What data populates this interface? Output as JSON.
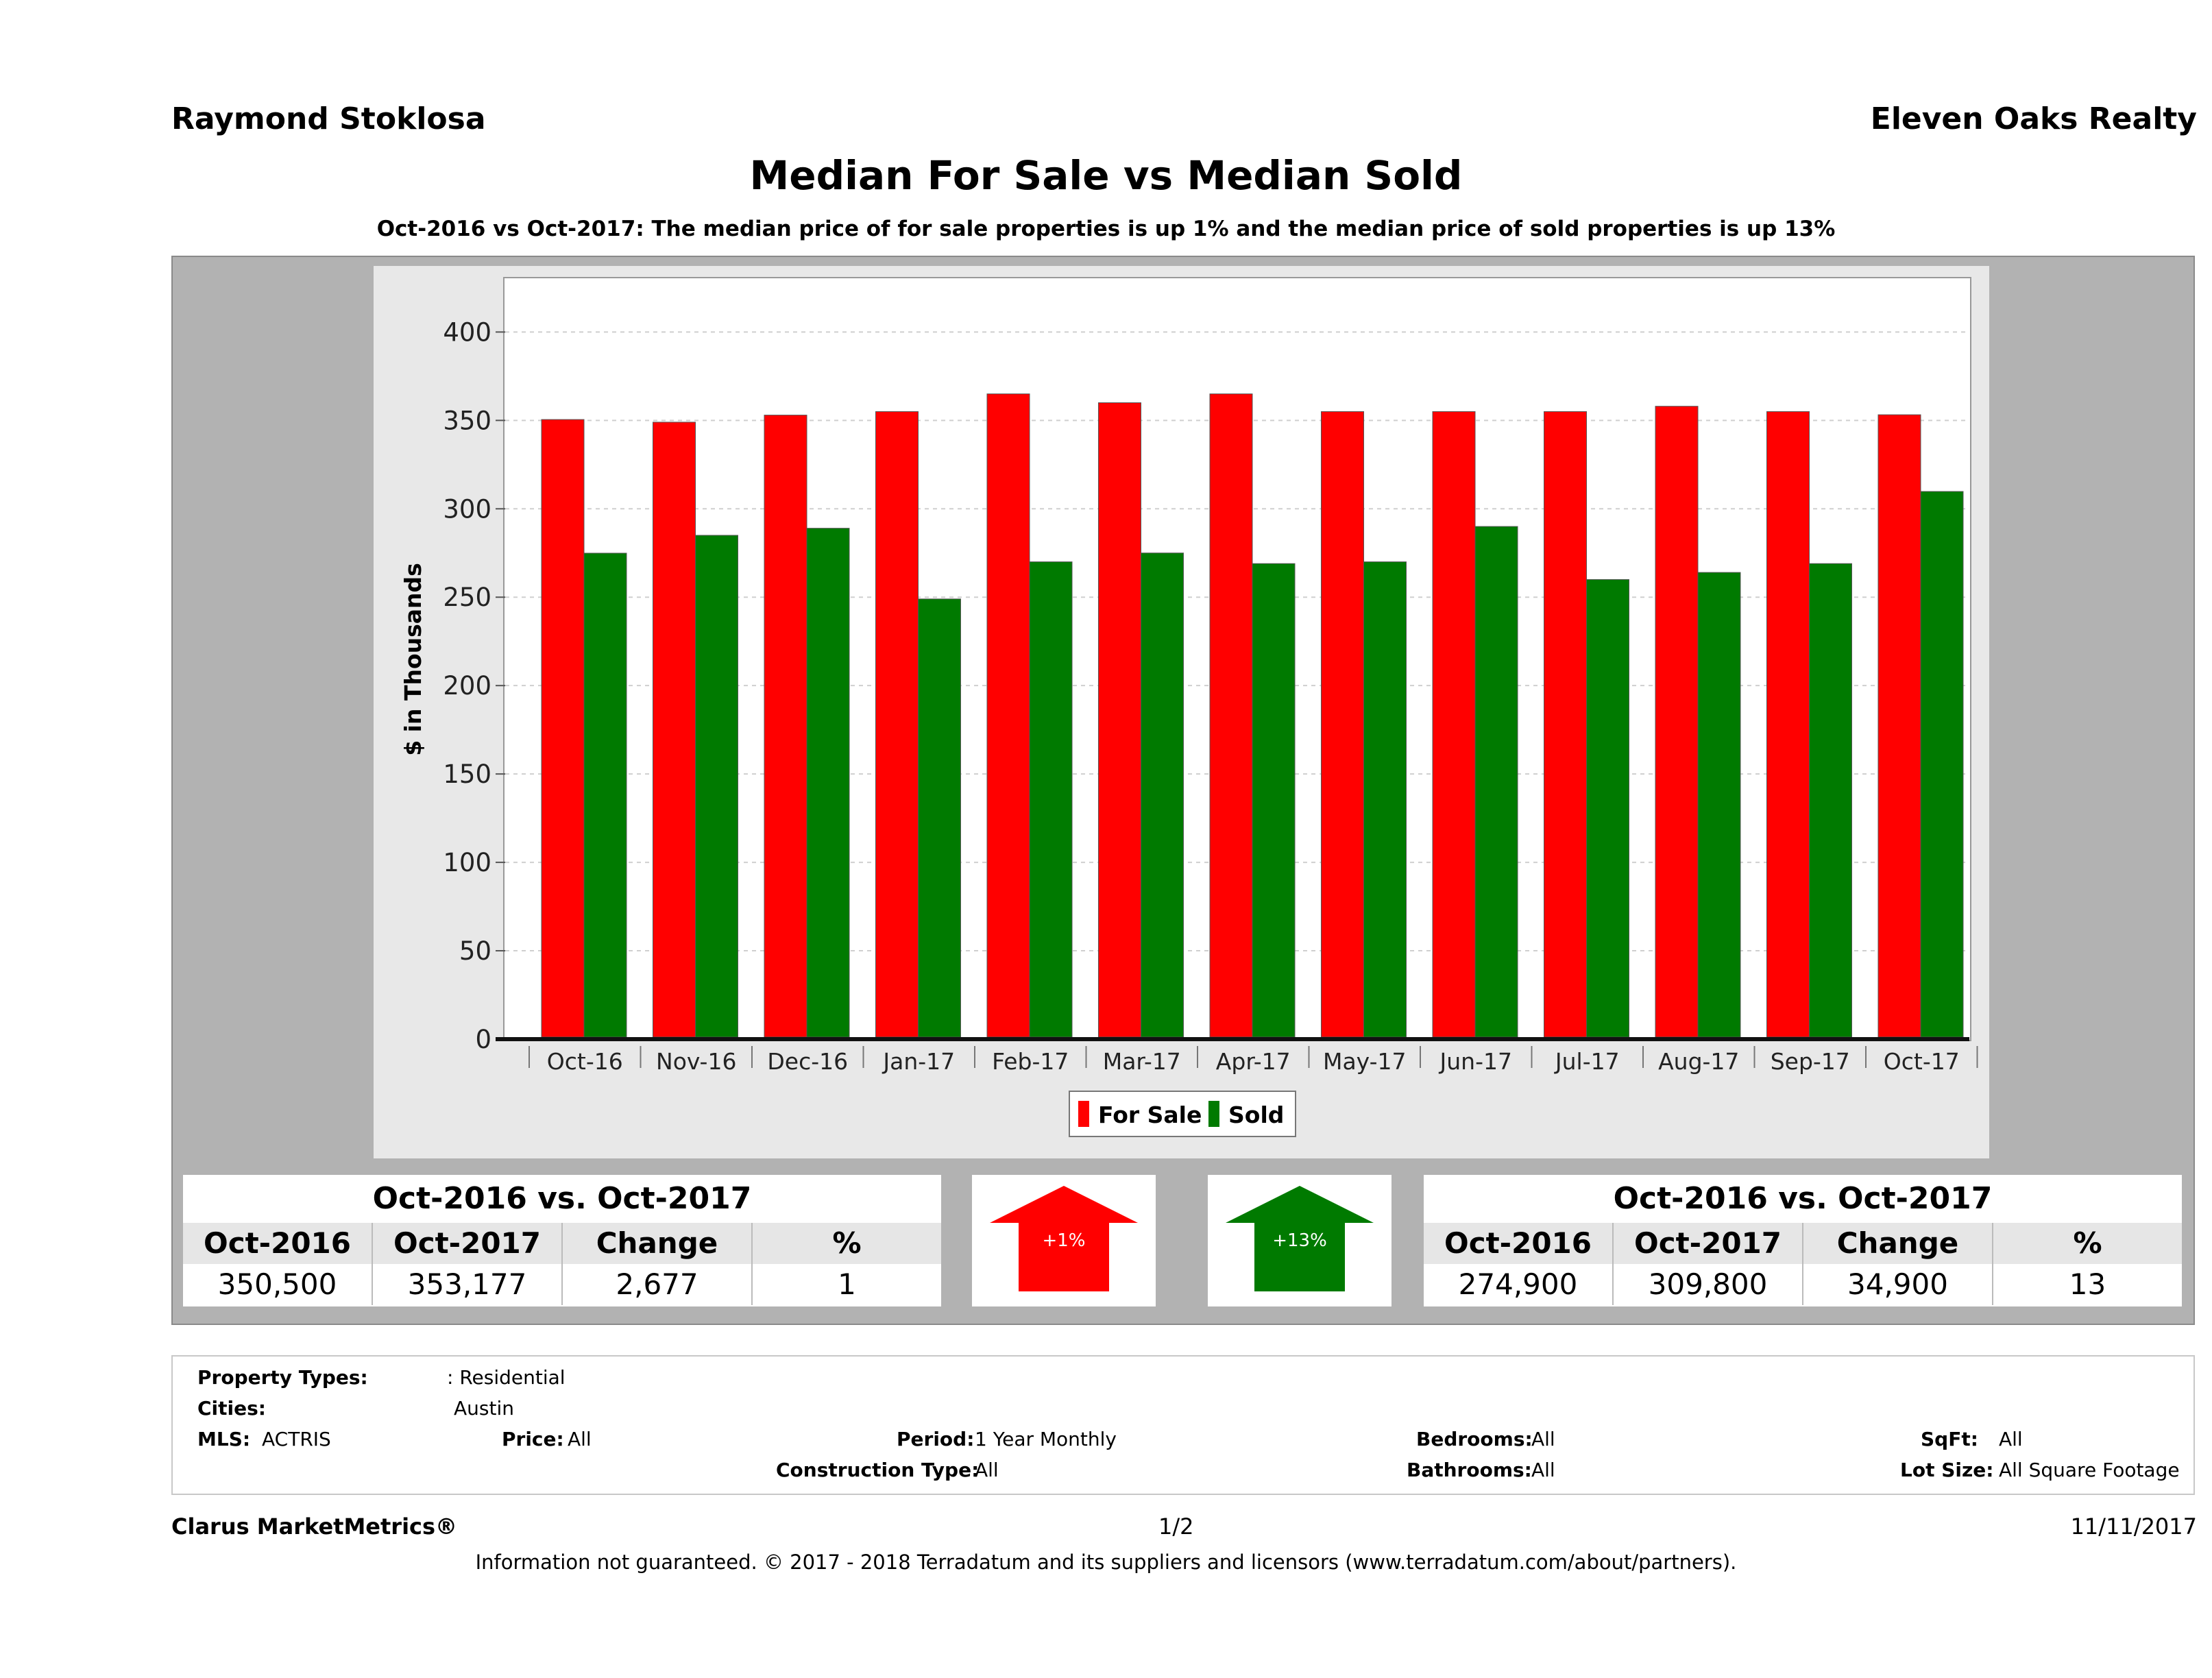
{
  "header": {
    "agent_name": "Raymond Stoklosa",
    "brokerage": "Eleven Oaks Realty",
    "title": "Median For Sale vs Median Sold",
    "subtitle": "Oct-2016 vs Oct-2017: The median price of for sale properties is up 1% and the median price of sold properties is up 13%"
  },
  "colors": {
    "for_sale": "#ff0000",
    "sold": "#007a00",
    "panel": "#b2b2b2",
    "chart_bg": "#e8e8e8"
  },
  "chart_data": {
    "type": "bar",
    "title": "Median For Sale vs Median Sold",
    "ylabel": "$ in Thousands",
    "xlabel": "",
    "ylim": [
      0,
      430
    ],
    "yticks": [
      0,
      50,
      100,
      150,
      200,
      250,
      300,
      350,
      400
    ],
    "grid": true,
    "legend_position": "bottom-center",
    "categories": [
      "Oct-16",
      "Nov-16",
      "Dec-16",
      "Jan-17",
      "Feb-17",
      "Mar-17",
      "Apr-17",
      "May-17",
      "Jun-17",
      "Jul-17",
      "Aug-17",
      "Sep-17",
      "Oct-17"
    ],
    "series": [
      {
        "name": "For Sale",
        "color": "#ff0000",
        "values": [
          350.5,
          349,
          353,
          355,
          365,
          360,
          365,
          355,
          355,
          355,
          358,
          355,
          353.2
        ]
      },
      {
        "name": "Sold",
        "color": "#007a00",
        "values": [
          274.9,
          285,
          289,
          249,
          270,
          275,
          269,
          270,
          290,
          260,
          264,
          269,
          309.8
        ]
      }
    ]
  },
  "for_sale_summary": {
    "heading": "Oct-2016 vs. Oct-2017",
    "columns": [
      "Oct-2016",
      "Oct-2017",
      "Change",
      "%"
    ],
    "values": [
      "350,500",
      "353,177",
      "2,677",
      "1"
    ],
    "arrow_label": "+1%"
  },
  "sold_summary": {
    "heading": "Oct-2016 vs. Oct-2017",
    "columns": [
      "Oct-2016",
      "Oct-2017",
      "Change",
      "%"
    ],
    "values": [
      "274,900",
      "309,800",
      "34,900",
      "13"
    ],
    "arrow_label": "+13%"
  },
  "criteria": {
    "property_types_label": "Property Types:",
    "property_types_value": ": Residential",
    "cities_label": "Cities:",
    "cities_value": "Austin",
    "mls_label": "MLS:",
    "mls_value": "ACTRIS",
    "price_label": "Price:",
    "price_value": "All",
    "period_label": "Period:",
    "period_value": "1 Year Monthly",
    "construction_label": "Construction Type:",
    "construction_value": "All",
    "bedrooms_label": "Bedrooms:",
    "bedrooms_value": "All",
    "bathrooms_label": "Bathrooms:",
    "bathrooms_value": "All",
    "sqft_label": "SqFt:",
    "sqft_value": "All",
    "lotsize_label": "Lot Size:",
    "lotsize_value": "All Square Footage"
  },
  "footer": {
    "brand": "Clarus MarketMetrics®",
    "page": "1/2",
    "date": "11/11/2017",
    "disclaimer": "Information not guaranteed. © 2017 - 2018 Terradatum and its suppliers and licensors (www.terradatum.com/about/partners)."
  }
}
